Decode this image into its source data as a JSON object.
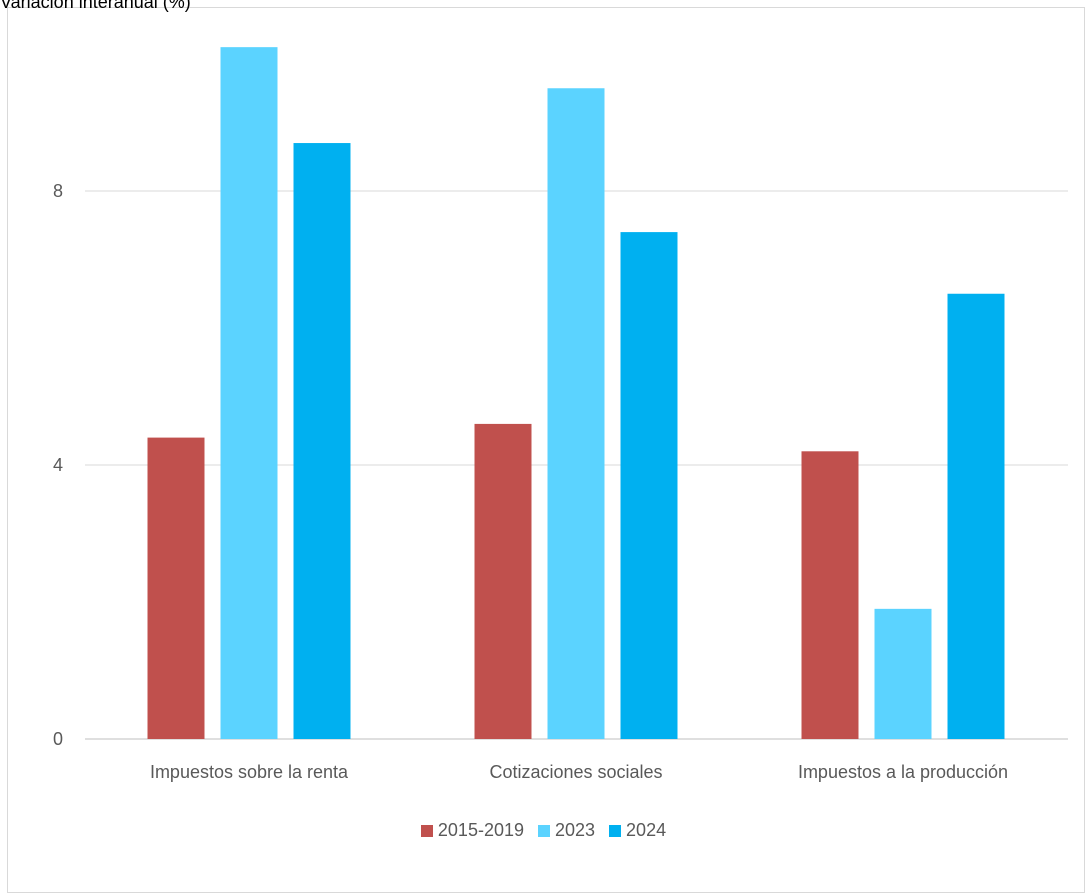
{
  "chart_data": {
    "type": "bar",
    "ylabel": "Variación interanual (%)",
    "categories": [
      "Impuestos sobre la renta",
      "Cotizaciones sociales",
      "Impuestos a la producción"
    ],
    "series": [
      {
        "name": "2015-2019",
        "color": "#c0504d",
        "values": [
          4.4,
          4.6,
          4.2
        ]
      },
      {
        "name": "2023",
        "color": "#5bd3ff",
        "values": [
          10.1,
          9.5,
          1.9
        ]
      },
      {
        "name": "2024",
        "color": "#00b0f0",
        "values": [
          8.7,
          7.4,
          6.5
        ]
      }
    ],
    "yticks": [
      0,
      4,
      8
    ],
    "ylim": [
      0,
      10.8
    ],
    "grid": true,
    "legend_position": "bottom"
  }
}
